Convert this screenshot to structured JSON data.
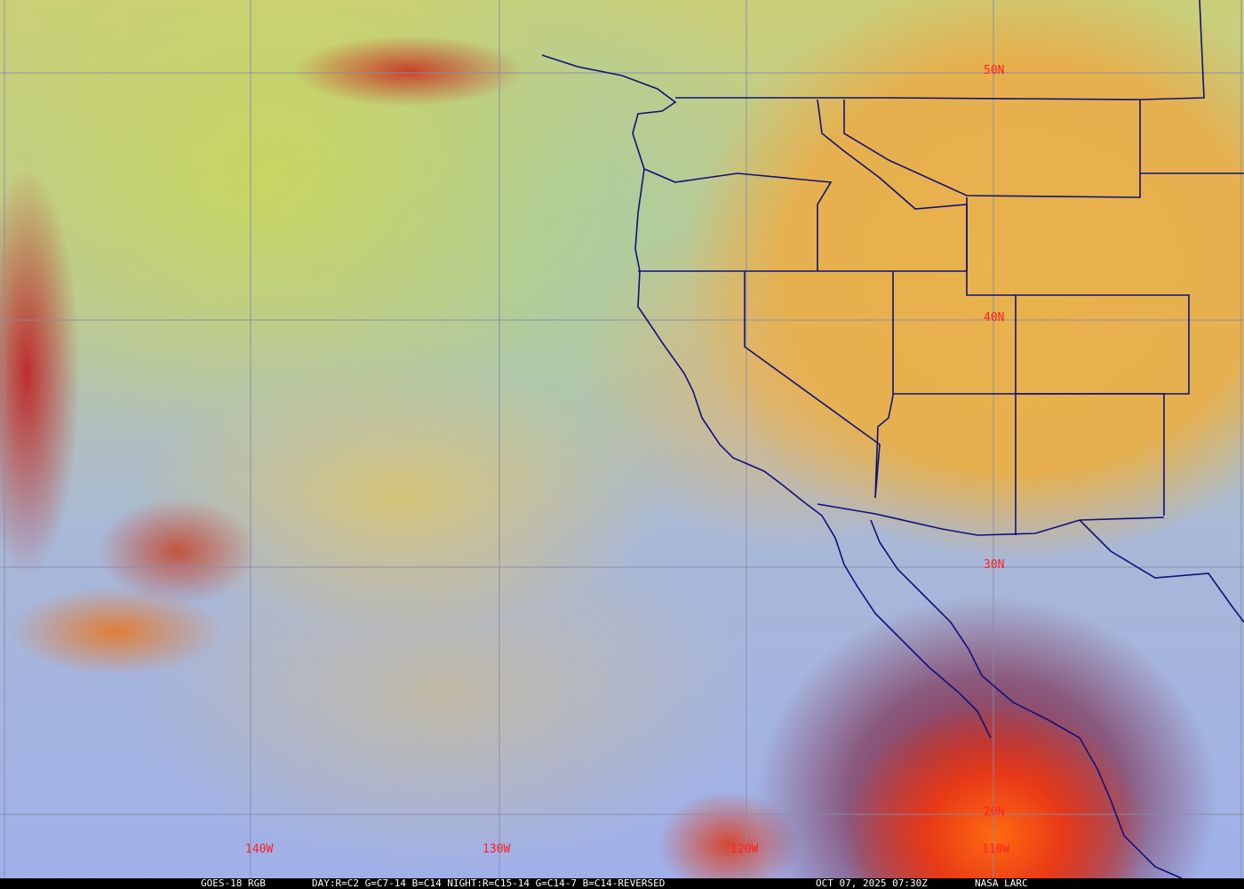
{
  "map": {
    "latitude_labels": [
      "50N",
      "40N",
      "30N",
      "20N"
    ],
    "longitude_labels": [
      "140W",
      "130W",
      "120W",
      "110W"
    ],
    "colors": {
      "grid": "#8888aa",
      "label": "#ff2020",
      "borders": "#10107a",
      "land": "#e9b24c",
      "ocean_clear": "#9fb0ea",
      "hurricane_core": "#ff6a10"
    }
  },
  "caption": {
    "product": "GOES-18 RGB",
    "recipe": "DAY:R=C2 G=C7-14 B=C14 NIGHT:R=C15-14 G=C14-7 B=C14-REVERSED",
    "timestamp": "OCT 07, 2025 07:30Z",
    "credit": "NASA LARC"
  }
}
